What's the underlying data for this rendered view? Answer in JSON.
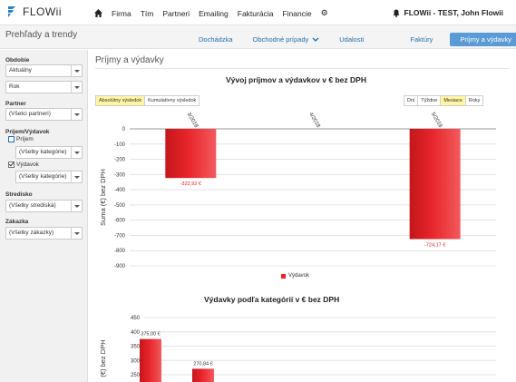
{
  "app": {
    "name": "FLOWii"
  },
  "topnav": {
    "items": [
      "Firma",
      "Tím",
      "Partneri",
      "Emailing",
      "Fakturácia",
      "Financie"
    ],
    "user": "FLOWii - TEST, John Flowii"
  },
  "subheader": {
    "title": "Prehľady a trendy",
    "tabs": [
      {
        "label": "Dochádzka",
        "active": false
      },
      {
        "label": "Obchodné prípady",
        "active": false,
        "dropdown": true
      },
      {
        "label": "Udalosti",
        "active": false
      },
      {
        "label": "Faktúry",
        "active": false
      },
      {
        "label": "Príjmy a výdavky",
        "active": true
      }
    ]
  },
  "sidebar": {
    "obdobie_label": "Obdobie",
    "obdobie_value": "Aktuálny",
    "obdobie_unit": "Rok",
    "partner_label": "Partner",
    "partner_value": "(Všetci partneri)",
    "prijem_vydavok_label": "Príjem/Výdavok",
    "prijem_label": "Príjem",
    "prijem_checked": false,
    "prijem_category": "(Všetky kategórie)",
    "vydavok_label": "Výdavok",
    "vydavok_checked": true,
    "vydavok_category": "(Všetky kategórie)",
    "stredisko_label": "Stredisko",
    "stredisko_value": "(Všetky strediská)",
    "zakazka_label": "Zákazka",
    "zakazka_value": "(Všetky zákazky)"
  },
  "main": {
    "title": "Príjmy a výdavky",
    "result_buttons": [
      {
        "label": "Absolútny výsledok",
        "active": true
      },
      {
        "label": "Kumulatívny výsledok",
        "active": false
      }
    ],
    "period_buttons": [
      {
        "label": "Dni",
        "active": false
      },
      {
        "label": "Týždne",
        "active": false
      },
      {
        "label": "Mesiace",
        "active": true
      },
      {
        "label": "Roky",
        "active": false
      }
    ]
  },
  "colors": {
    "bar": "#e8262b",
    "accent": "#5b9bd5",
    "highlight": "#fff5a3"
  },
  "chart_data": [
    {
      "type": "bar",
      "title": "Vývoj príjmov a výdavkov v € bez DPH",
      "categories": [
        "3/2018",
        "4/2018",
        "5/2018"
      ],
      "series": [
        {
          "name": "Výdavok",
          "values": [
            -322.92,
            0,
            -724.17
          ],
          "labels": [
            "-322,92 €",
            "",
            "-724,17 €"
          ]
        }
      ],
      "ylabel": "Suma (€) bez DPH",
      "ylim": [
        -900,
        0
      ],
      "yticks": [
        0,
        -100,
        -200,
        -300,
        -400,
        -500,
        -600,
        -700,
        -800,
        -900
      ],
      "legend": "bottom",
      "grid": true
    },
    {
      "type": "bar",
      "title": "Výdavky podľa kategórií v € bez DPH",
      "series": [
        {
          "values": [
            375.0,
            270.84
          ],
          "labels": [
            "375,00 €",
            "270,84 €"
          ]
        }
      ],
      "ylabel": "(€) bez DPH",
      "yticks": [
        450,
        400,
        350,
        300,
        250
      ],
      "grid": true
    }
  ]
}
